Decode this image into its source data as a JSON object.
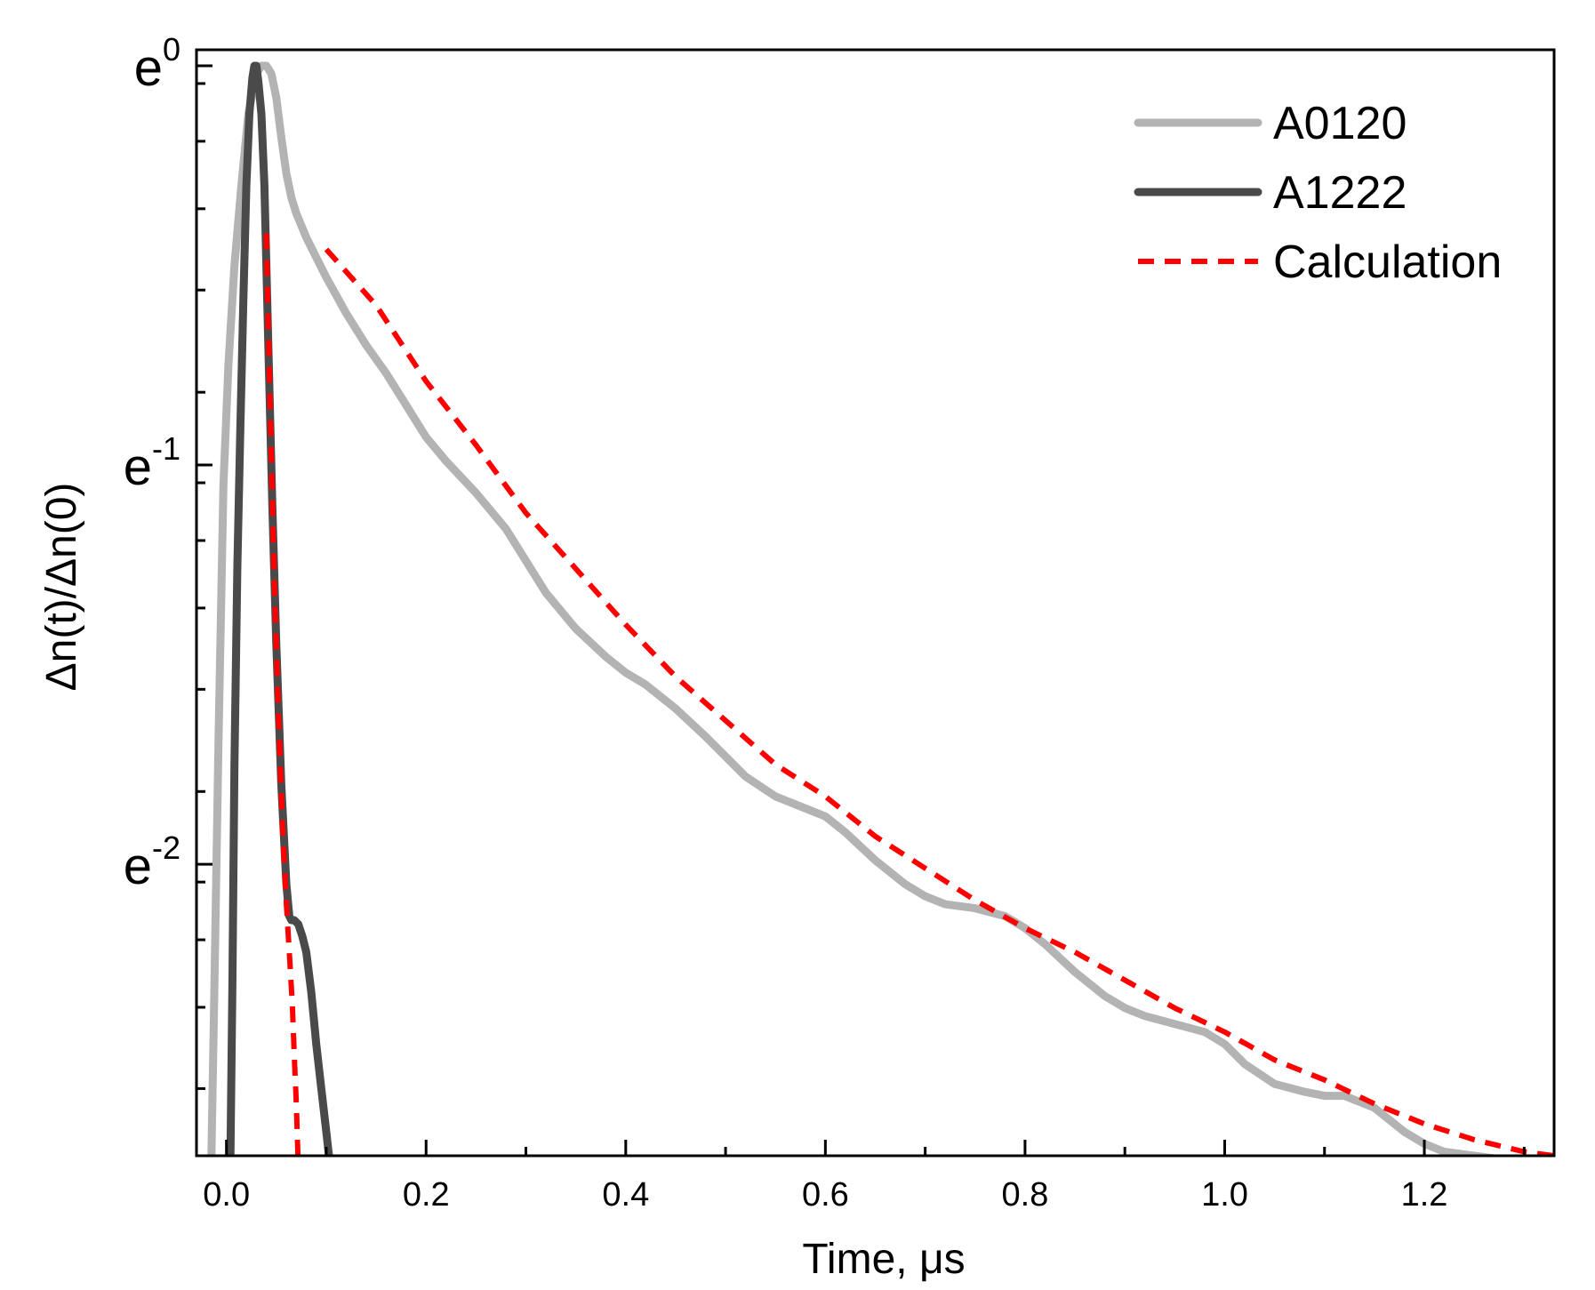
{
  "chart_data": {
    "type": "line",
    "title": "",
    "xlabel": "Time, μs",
    "ylabel": "Δn(t)/Δn(0)",
    "xlim": [
      -0.03,
      1.33
    ],
    "ylim": [
      -2.73,
      0.04
    ],
    "y_scale": "ln",
    "x_ticks": [
      0.0,
      0.2,
      0.4,
      0.6,
      0.8,
      1.0,
      1.2
    ],
    "x_tick_labels": [
      "0.0",
      "0.2",
      "0.4",
      "0.6",
      "0.8",
      "1.0",
      "1.2"
    ],
    "y_ticks": [
      0,
      -1,
      -2
    ],
    "y_tick_labels": [
      {
        "base": "e",
        "exp": "0"
      },
      {
        "base": "e",
        "exp": "-1"
      },
      {
        "base": "e",
        "exp": "-2"
      }
    ],
    "legend_position": "top-right",
    "series": [
      {
        "name": "A0120",
        "color": "#b3b3b3",
        "style": "solid",
        "x": [
          -0.015,
          -0.012,
          -0.008,
          -0.003,
          0.002,
          0.008,
          0.015,
          0.022,
          0.03,
          0.035,
          0.04,
          0.045,
          0.05,
          0.055,
          0.06,
          0.065,
          0.07,
          0.08,
          0.09,
          0.1,
          0.12,
          0.14,
          0.16,
          0.18,
          0.2,
          0.22,
          0.25,
          0.28,
          0.3,
          0.32,
          0.35,
          0.38,
          0.4,
          0.42,
          0.45,
          0.48,
          0.5,
          0.52,
          0.55,
          0.58,
          0.6,
          0.62,
          0.65,
          0.68,
          0.7,
          0.72,
          0.75,
          0.78,
          0.8,
          0.82,
          0.85,
          0.88,
          0.9,
          0.92,
          0.95,
          0.98,
          1.0,
          1.02,
          1.05,
          1.08,
          1.1,
          1.12,
          1.15,
          1.18,
          1.2,
          1.22,
          1.25,
          1.28,
          1.3,
          1.32
        ],
        "y": [
          -2.73,
          -2.3,
          -1.7,
          -1.05,
          -0.75,
          -0.5,
          -0.3,
          -0.12,
          -0.02,
          0.0,
          0.0,
          -0.02,
          -0.08,
          -0.18,
          -0.27,
          -0.33,
          -0.37,
          -0.43,
          -0.48,
          -0.53,
          -0.62,
          -0.7,
          -0.77,
          -0.85,
          -0.93,
          -0.99,
          -1.07,
          -1.16,
          -1.24,
          -1.32,
          -1.41,
          -1.48,
          -1.52,
          -1.55,
          -1.61,
          -1.68,
          -1.73,
          -1.78,
          -1.83,
          -1.86,
          -1.88,
          -1.92,
          -1.99,
          -2.05,
          -2.08,
          -2.1,
          -2.11,
          -2.13,
          -2.16,
          -2.2,
          -2.27,
          -2.33,
          -2.36,
          -2.38,
          -2.4,
          -2.42,
          -2.45,
          -2.5,
          -2.55,
          -2.57,
          -2.58,
          -2.58,
          -2.61,
          -2.67,
          -2.7,
          -2.72,
          -2.73,
          -2.74,
          -2.75,
          -2.77
        ]
      },
      {
        "name": "A1222",
        "color": "#4a4a4a",
        "style": "solid",
        "x": [
          0.004,
          0.006,
          0.008,
          0.011,
          0.014,
          0.017,
          0.02,
          0.023,
          0.026,
          0.028,
          0.03,
          0.032,
          0.035,
          0.038,
          0.042,
          0.046,
          0.05,
          0.055,
          0.06,
          0.063,
          0.065,
          0.068,
          0.072,
          0.076,
          0.08,
          0.085,
          0.09,
          0.095,
          0.1,
          0.104
        ],
        "y": [
          -2.73,
          -2.3,
          -1.75,
          -1.25,
          -0.9,
          -0.58,
          -0.3,
          -0.12,
          -0.03,
          0.0,
          0.0,
          -0.04,
          -0.12,
          -0.3,
          -0.7,
          -1.1,
          -1.45,
          -1.8,
          -2.05,
          -2.13,
          -2.14,
          -2.14,
          -2.15,
          -2.18,
          -2.22,
          -2.32,
          -2.45,
          -2.56,
          -2.67,
          -2.76
        ]
      },
      {
        "name": "Calculation",
        "color": "#ff0000",
        "style": "dashed",
        "x": [
          0.04,
          0.042,
          0.045,
          0.048,
          0.052,
          0.056,
          0.06,
          0.063,
          0.066,
          0.068,
          0.07,
          0.072,
          0.1,
          0.15,
          0.2,
          0.25,
          0.3,
          0.35,
          0.4,
          0.45,
          0.5,
          0.55,
          0.6,
          0.65,
          0.7,
          0.75,
          0.8,
          0.85,
          0.9,
          0.95,
          1.0,
          1.05,
          1.1,
          1.15,
          1.2,
          1.25,
          1.3,
          1.33
        ],
        "y": [
          -0.42,
          -0.65,
          -0.98,
          -1.3,
          -1.62,
          -1.9,
          -2.1,
          -2.22,
          -2.35,
          -2.48,
          -2.6,
          -2.76,
          -0.46,
          -0.6,
          -0.79,
          -0.95,
          -1.12,
          -1.26,
          -1.4,
          -1.53,
          -1.64,
          -1.75,
          -1.83,
          -1.93,
          -2.01,
          -2.09,
          -2.16,
          -2.22,
          -2.29,
          -2.36,
          -2.42,
          -2.49,
          -2.54,
          -2.6,
          -2.65,
          -2.69,
          -2.72,
          -2.73
        ]
      }
    ]
  }
}
